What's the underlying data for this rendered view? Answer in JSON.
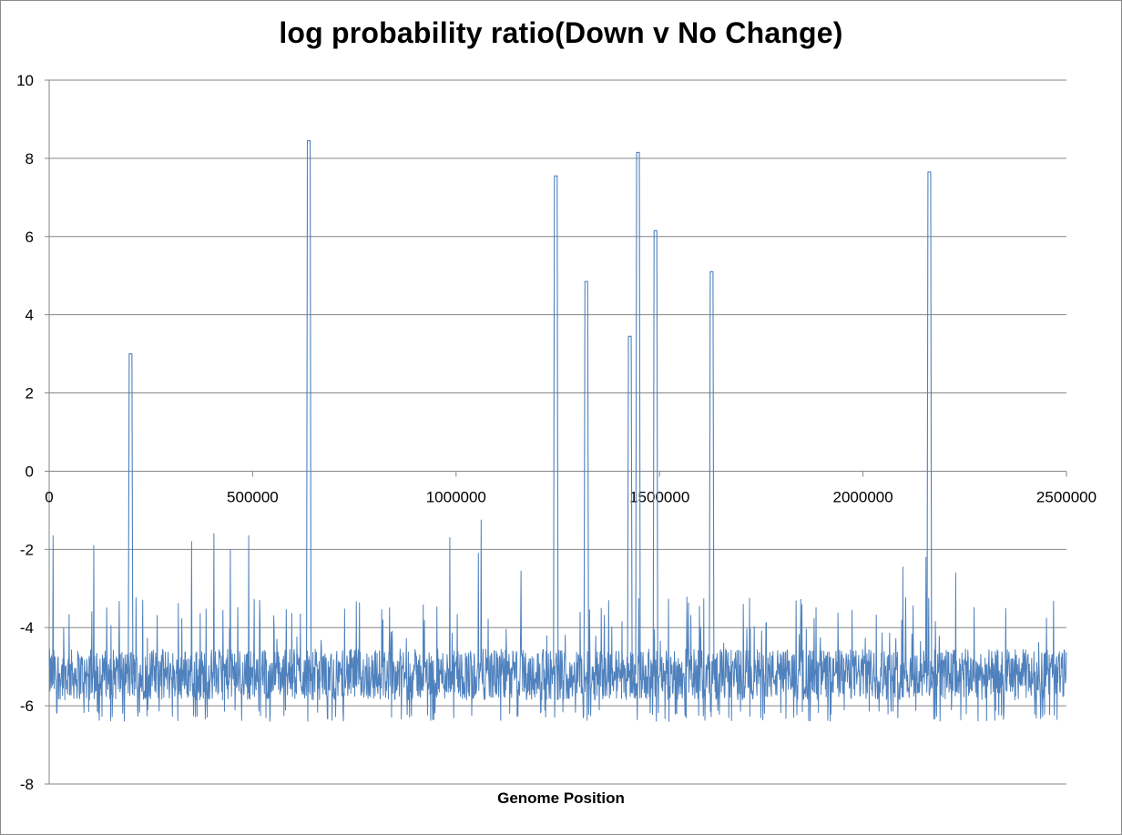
{
  "chart_data": {
    "type": "line",
    "title": "log probability ratio(Down v No Change)",
    "xlabel": "Genome Position",
    "ylabel": "",
    "xlim": [
      0,
      2500000
    ],
    "ylim": [
      -8,
      10
    ],
    "x_ticks": [
      "0",
      "500000",
      "1000000",
      "1500000",
      "2000000",
      "2500000"
    ],
    "y_ticks": [
      "10",
      "8",
      "6",
      "4",
      "2",
      "0",
      "-2",
      "-4",
      "-6",
      "-8"
    ],
    "grid": "horizontal",
    "legend": "none",
    "series_color": "#4F81BD",
    "baseline_range": [
      -6.2,
      -4.4
    ],
    "peaks": [
      {
        "x": 200000,
        "y": 3.0
      },
      {
        "x": 638000,
        "y": 8.45
      },
      {
        "x": 1245000,
        "y": 7.55
      },
      {
        "x": 1320000,
        "y": 4.85
      },
      {
        "x": 1427000,
        "y": 3.45
      },
      {
        "x": 1447000,
        "y": 8.15
      },
      {
        "x": 1490000,
        "y": 6.15
      },
      {
        "x": 1628000,
        "y": 5.1
      },
      {
        "x": 2163000,
        "y": 7.65
      }
    ],
    "minor_spikes": [
      {
        "x": 10000,
        "y": -1.65
      },
      {
        "x": 110000,
        "y": -1.9
      },
      {
        "x": 350000,
        "y": -1.8
      },
      {
        "x": 405000,
        "y": -1.6
      },
      {
        "x": 445000,
        "y": -2.0
      },
      {
        "x": 490000,
        "y": -1.65
      },
      {
        "x": 985000,
        "y": -1.7
      },
      {
        "x": 1055000,
        "y": -2.1
      },
      {
        "x": 1062000,
        "y": -1.25
      },
      {
        "x": 1160000,
        "y": -2.55
      },
      {
        "x": 2098000,
        "y": -2.45
      },
      {
        "x": 2155000,
        "y": -2.2
      },
      {
        "x": 2228000,
        "y": -2.6
      }
    ]
  }
}
